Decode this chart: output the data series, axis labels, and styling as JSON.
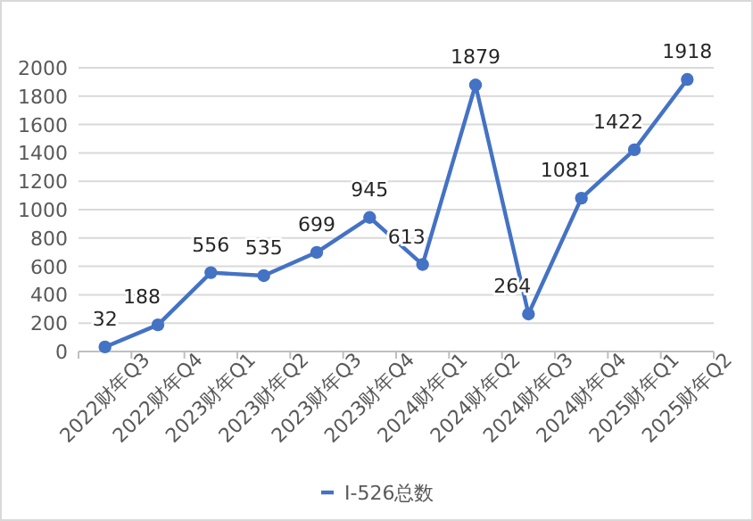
{
  "chart_data": {
    "type": "line",
    "categories": [
      "2022财年Q3",
      "2022财年Q4",
      "2023财年Q1",
      "2023财年Q2",
      "2023财年Q3",
      "2023财年Q4",
      "2024财年Q1",
      "2024财年Q2",
      "2024财年Q3",
      "2024财年Q4",
      "2025财年Q1",
      "2025财年Q2"
    ],
    "series": [
      {
        "name": "I-526总数",
        "color": "#4472c4",
        "values": [
          32,
          188,
          556,
          535,
          699,
          945,
          613,
          1879,
          264,
          1081,
          1422,
          1918
        ]
      }
    ],
    "ylim": [
      0,
      2000
    ],
    "yticks": [
      0,
      200,
      400,
      600,
      800,
      1000,
      1200,
      1400,
      1600,
      1800,
      2000
    ],
    "grid": "y",
    "legend": "bottom",
    "marker": "circle",
    "line_style": "solid",
    "data_labels": true
  }
}
